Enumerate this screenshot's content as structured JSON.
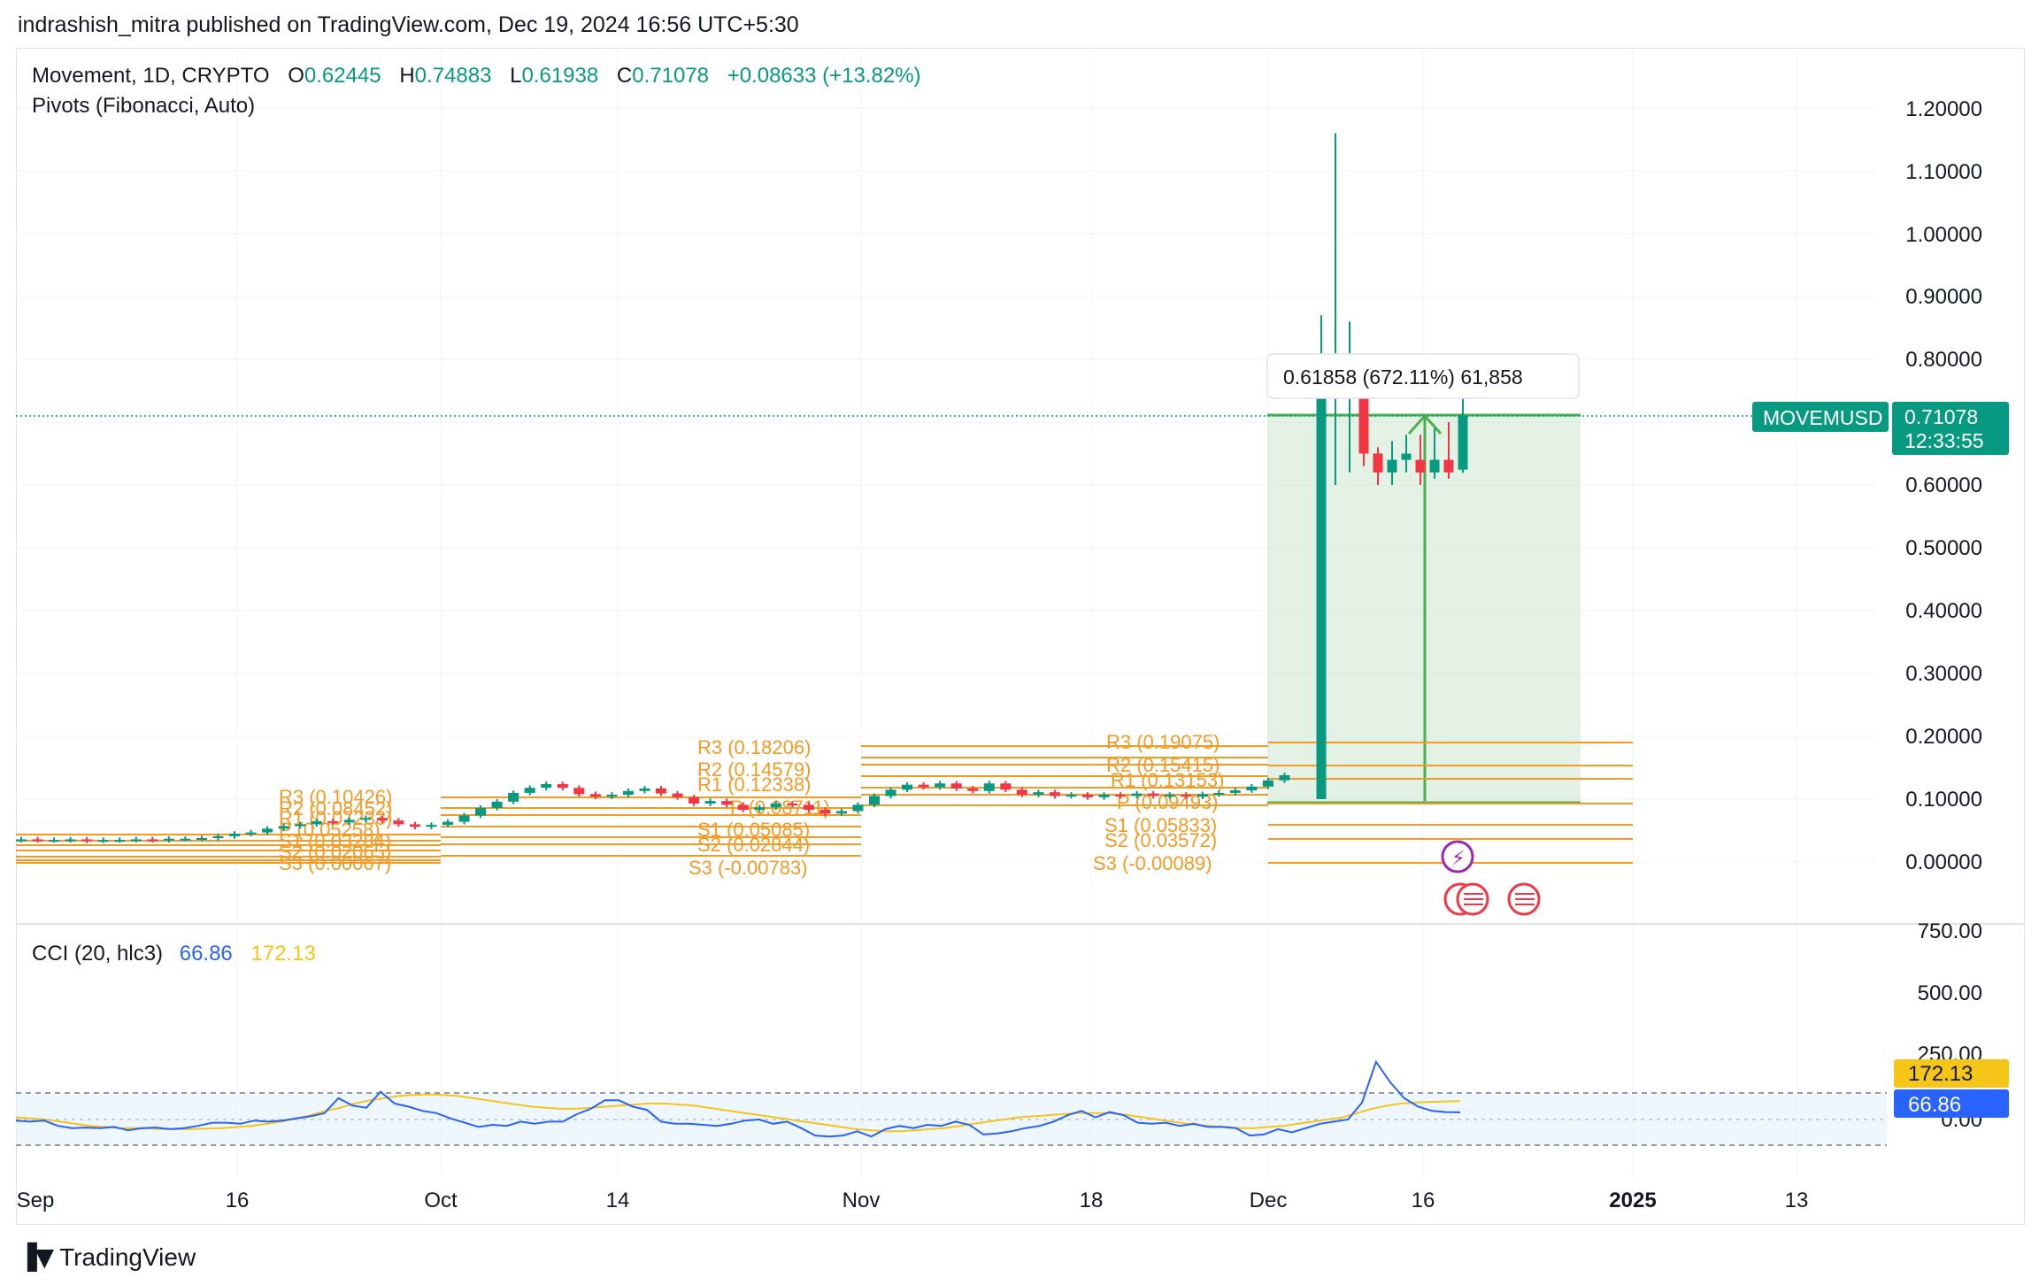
{
  "header": {
    "published_line": "indrashish_mitra published on TradingView.com, Dec 19, 2024 16:56 UTC+5:30"
  },
  "legend": {
    "symbol_line": "Movement, 1D, CRYPTO",
    "o_label": "O",
    "o_value": "0.62445",
    "h_label": "H",
    "h_value": "0.74883",
    "l_label": "L",
    "l_value": "0.61938",
    "c_label": "C",
    "c_value": "0.71078",
    "change": "+0.08633 (+13.82%)",
    "pivots_label": "Pivots (Fibonacci, Auto)"
  },
  "price_axis": {
    "ticks": [
      "1.20000",
      "1.10000",
      "1.00000",
      "0.90000",
      "0.80000",
      "0.60000",
      "0.50000",
      "0.40000",
      "0.30000",
      "0.20000",
      "0.10000",
      "0.00000"
    ],
    "symbol_tag": "MOVEMUSD",
    "last_price": "0.71078",
    "countdown": "12:33:55"
  },
  "measure_tool": {
    "label": "0.61858 (672.11%) 61,858"
  },
  "pivot_labels": {
    "p2": [
      "R3 (0.18206)",
      "R2 (0.14579)",
      "R1 (0.12338)",
      "P (0.08711)",
      "S1 (0.05085)",
      "S2 (0.02844)",
      "S3 (-0.00783)"
    ],
    "p3": [
      "R3 (0.19075)",
      "R2 (0.15415)",
      "R1 (0.13153)",
      "P (0.09493)",
      "S1 (0.05833)",
      "S2 (0.03572)",
      "S3 (-0.00089)"
    ],
    "p1": [
      "R3 (0.10426)",
      "R2 (0.08452)",
      "R1 (0.07233)",
      "P (0.05258)",
      "S1 (0.03284)",
      "S2 (0.02065)",
      "S3 (0.00067)"
    ]
  },
  "cci": {
    "label": "CCI (20, hlc3)",
    "cci_value": "66.86",
    "ma_value": "172.13",
    "axis_ticks": [
      "750.00",
      "500.00",
      "250.00",
      "0.00"
    ]
  },
  "time_axis": {
    "ticks": [
      "Sep",
      "16",
      "Oct",
      "14",
      "Nov",
      "18",
      "Dec",
      "16",
      "2025",
      "13"
    ]
  },
  "colors": {
    "up": "#089981",
    "down": "#f23645",
    "pivot": "#f59a23",
    "cci_line": "#2962ff",
    "cci_ma": "#f5c518",
    "measure_fill": "#c8e6c9",
    "measure_line": "#4caf50"
  },
  "footer": {
    "brand": "TradingView"
  },
  "chart_data": {
    "type": "candlestick",
    "symbol": "MOVEMUSD",
    "interval": "1D",
    "ylim": [
      -0.02,
      1.22
    ],
    "last_candles": [
      {
        "date": "Dec 9",
        "open": 0.1,
        "high": 0.87,
        "low": 0.1,
        "close": 0.74
      },
      {
        "date": "Dec 10",
        "open": 0.74,
        "high": 1.16,
        "low": 0.6,
        "close": 0.75
      },
      {
        "date": "Dec 11",
        "open": 0.75,
        "high": 0.86,
        "low": 0.62,
        "close": 0.76
      },
      {
        "date": "Dec 12",
        "open": 0.75,
        "high": 0.77,
        "low": 0.63,
        "close": 0.65
      },
      {
        "date": "Dec 13",
        "open": 0.65,
        "high": 0.66,
        "low": 0.6,
        "close": 0.62
      },
      {
        "date": "Dec 14",
        "open": 0.62,
        "high": 0.67,
        "low": 0.6,
        "close": 0.64
      },
      {
        "date": "Dec 15",
        "open": 0.64,
        "high": 0.68,
        "low": 0.62,
        "close": 0.65
      },
      {
        "date": "Dec 16",
        "open": 0.64,
        "high": 0.68,
        "low": 0.6,
        "close": 0.62
      },
      {
        "date": "Dec 17",
        "open": 0.62,
        "high": 0.69,
        "low": 0.61,
        "close": 0.64
      },
      {
        "date": "Dec 18",
        "open": 0.64,
        "high": 0.7,
        "low": 0.61,
        "close": 0.62
      },
      {
        "date": "Dec 19",
        "open": 0.62445,
        "high": 0.74883,
        "low": 0.61938,
        "close": 0.71078
      }
    ]
  }
}
